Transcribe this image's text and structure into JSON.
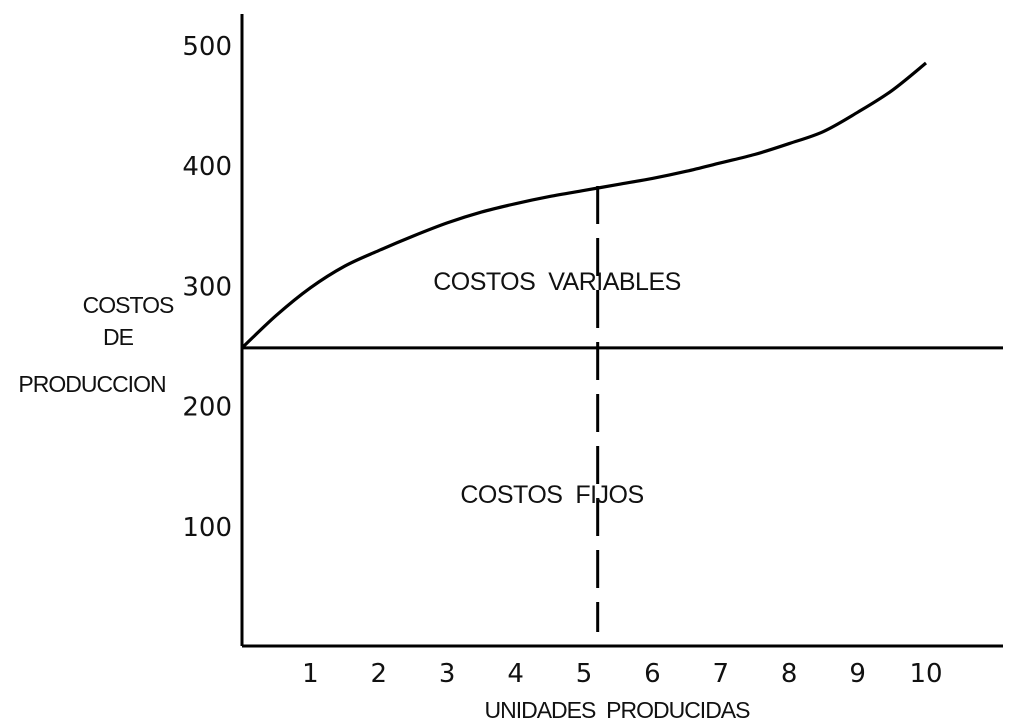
{
  "chart_data": {
    "type": "line",
    "title": "",
    "xlabel": "UNIDADES  PRODUCIDAS",
    "ylabel_lines": [
      "COSTOS",
      "DE",
      "PRODUCCION"
    ],
    "x_ticks": [
      "1",
      "2",
      "3",
      "4",
      "5",
      "6",
      "7",
      "8",
      "9",
      "10"
    ],
    "y_ticks": [
      "100",
      "200",
      "300",
      "400",
      "500"
    ],
    "xlim": [
      0,
      12.3
    ],
    "ylim": [
      0,
      510
    ],
    "fixed_cost": 248,
    "series": [
      {
        "x": [
          0,
          0.5,
          1,
          1.5,
          2,
          2.5,
          3,
          3.5,
          4,
          4.5,
          5,
          5.5,
          6,
          6.5,
          7,
          7.5,
          8,
          8.5,
          9,
          9.5,
          10
        ],
        "values": [
          248,
          275,
          298,
          316,
          329,
          341,
          352,
          361,
          368,
          374,
          379,
          384,
          389,
          395,
          402,
          409,
          418,
          428,
          444,
          462,
          485
        ]
      }
    ],
    "marker_x": 5.2,
    "annotations": {
      "variable": "COSTOS  VARIABLES",
      "fixed": "COSTOS  FIJOS"
    },
    "grid": false,
    "legend": "none",
    "line_color": "#000000"
  }
}
